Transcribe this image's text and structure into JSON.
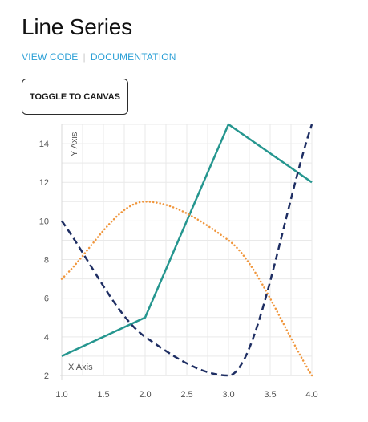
{
  "header": {
    "title": "Line Series",
    "view_code_label": "VIEW CODE",
    "documentation_label": "DOCUMENTATION",
    "separator": "|"
  },
  "toolbar": {
    "toggle_label": "TOGGLE TO CANVAS"
  },
  "colors": {
    "teal": "#25968f",
    "navy": "#1e2e63",
    "orange": "#f0963c",
    "link": "#2a9fd6"
  },
  "chart_data": {
    "type": "line",
    "xlabel": "X Axis",
    "ylabel": "Y Axis",
    "xlim": [
      1.0,
      4.0
    ],
    "ylim": [
      2,
      15
    ],
    "x_ticks": [
      "1.0",
      "1.5",
      "2.0",
      "2.5",
      "3.0",
      "3.5",
      "4.0"
    ],
    "y_ticks": [
      "2",
      "4",
      "6",
      "8",
      "10",
      "12",
      "14"
    ],
    "grid": true,
    "series": [
      {
        "style": "solid",
        "color": "#25968f",
        "curve": "linear",
        "x": [
          1,
          2,
          3,
          4
        ],
        "y": [
          3,
          5,
          15,
          12
        ]
      },
      {
        "style": "dashed",
        "color": "#1e2e63",
        "curve": "smooth",
        "x": [
          1,
          2,
          3,
          4
        ],
        "y": [
          10,
          4,
          2,
          15
        ]
      },
      {
        "style": "dotted",
        "color": "#f0963c",
        "curve": "smooth",
        "x": [
          1,
          2,
          3,
          4
        ],
        "y": [
          7,
          11,
          9,
          2
        ]
      }
    ]
  }
}
